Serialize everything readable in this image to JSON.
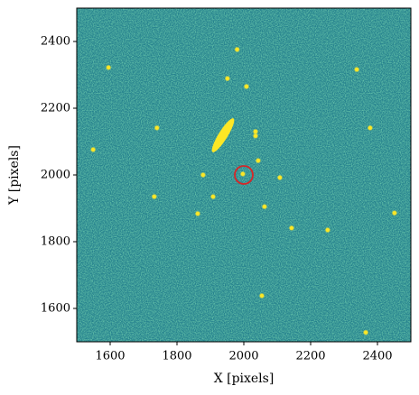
{
  "chart_data": {
    "type": "image",
    "xlabel": "X [pixels]",
    "ylabel": "Y [pixels]",
    "xlim": [
      1500,
      2500
    ],
    "ylim": [
      1500,
      2500
    ],
    "xticks": [
      1600,
      1800,
      2000,
      2200,
      2400
    ],
    "yticks": [
      1600,
      1800,
      2000,
      2200,
      2400
    ],
    "background_color": "#26828e",
    "source_color": "#fde725",
    "sources": {
      "x": [
        1980,
        1595,
        2338,
        1951,
        2008,
        2378,
        1740,
        2035,
        2035,
        1549,
        2043,
        1878,
        1997,
        2108,
        1908,
        1732,
        2062,
        1862,
        2451,
        2143,
        2251,
        2054,
        2365
      ],
      "y": [
        2376,
        2322,
        2316,
        2289,
        2265,
        2141,
        2141,
        2130,
        2117,
        2076,
        2043,
        2000,
        2003,
        1992,
        1935,
        1935,
        1905,
        1884,
        1886,
        1841,
        1835,
        1638,
        1528
      ]
    },
    "marker": {
      "x": 2000,
      "y": 2000,
      "color": "#d62728"
    }
  }
}
